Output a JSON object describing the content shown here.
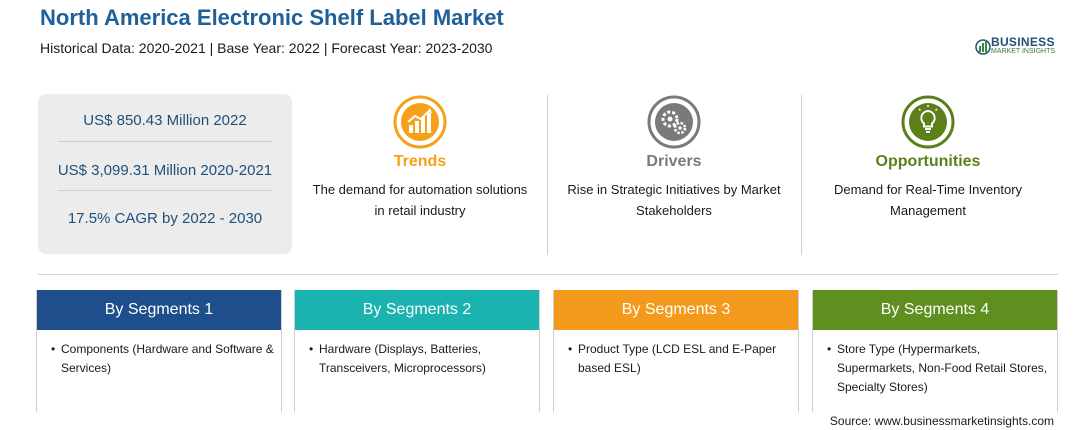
{
  "header": {
    "title": "North America Electronic Shelf Label Market",
    "subtitle": "Historical Data: 2020-2021 | Base Year: 2022 | Forecast Year: 2023-2030"
  },
  "logo": {
    "main": "BUSINESS",
    "sub": "MARKET INSIGHTS"
  },
  "stats": [
    "US$ 850.43 Million 2022",
    "US$ 3,099.31 Million 2020-2021",
    "17.5% CAGR by 2022 - 2030"
  ],
  "insights": [
    {
      "title": "Trends",
      "icon": "trend-chart-icon",
      "color": "#f7a11a",
      "desc_lines": [
        "The demand for automation solutions",
        "in retail industry"
      ]
    },
    {
      "title": "Drivers",
      "icon": "gears-icon",
      "color": "#7a7a7a",
      "desc_lines": [
        "Rise in Strategic Initiatives by Market",
        "Stakeholders"
      ]
    },
    {
      "title": "Opportunities",
      "icon": "lightbulb-icon",
      "color": "#5c7f1a",
      "desc_lines": [
        "Demand for Real-Time Inventory",
        "Management"
      ]
    }
  ],
  "segments": [
    {
      "title": "By Segments 1",
      "color": "#1f4e8c",
      "bullet": "•",
      "item": "Components (Hardware and Software & Services)"
    },
    {
      "title": "By Segments 2",
      "color": "#1bb3b0",
      "bullet": "•",
      "item": "Hardware (Displays, Batteries, Transceivers, Microprocessors)"
    },
    {
      "title": "By Segments 3",
      "color": "#f39a1c",
      "bullet": "•",
      "item": "Product Type (LCD ESL and E-Paper based ESL)"
    },
    {
      "title": "By Segments 4",
      "color": "#5f8f1f",
      "bullet": "•",
      "item": "Store Type (Hypermarkets, Supermarkets, Non-Food Retail Stores, Specialty Stores)"
    }
  ],
  "source": "Source: www.businessmarketinsights.com"
}
